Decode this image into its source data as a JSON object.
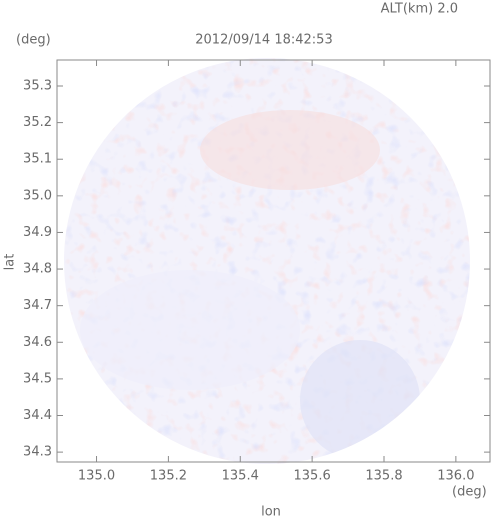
{
  "chart_data": {
    "type": "radar-map",
    "title": "2012/09/14 18:42:53",
    "subtitle": "ALT(km) 2.0",
    "x_label": "lon",
    "y_label": "lat",
    "x_unit": "(deg)",
    "y_unit": "(deg)",
    "xlim": [
      134.89,
      136.095
    ],
    "ylim": [
      34.273,
      35.371
    ],
    "xticks": [
      {
        "value": 135.0,
        "label": "135.0"
      },
      135.2,
      135.4,
      135.6,
      135.8,
      {
        "value": 136.0,
        "label": "136.0"
      }
    ],
    "yticks": [
      34.3,
      34.4,
      34.5,
      34.6,
      34.7,
      34.8,
      34.9,
      {
        "value": 35.0,
        "label": "35.0"
      },
      35.1,
      35.2,
      35.3
    ]
  }
}
